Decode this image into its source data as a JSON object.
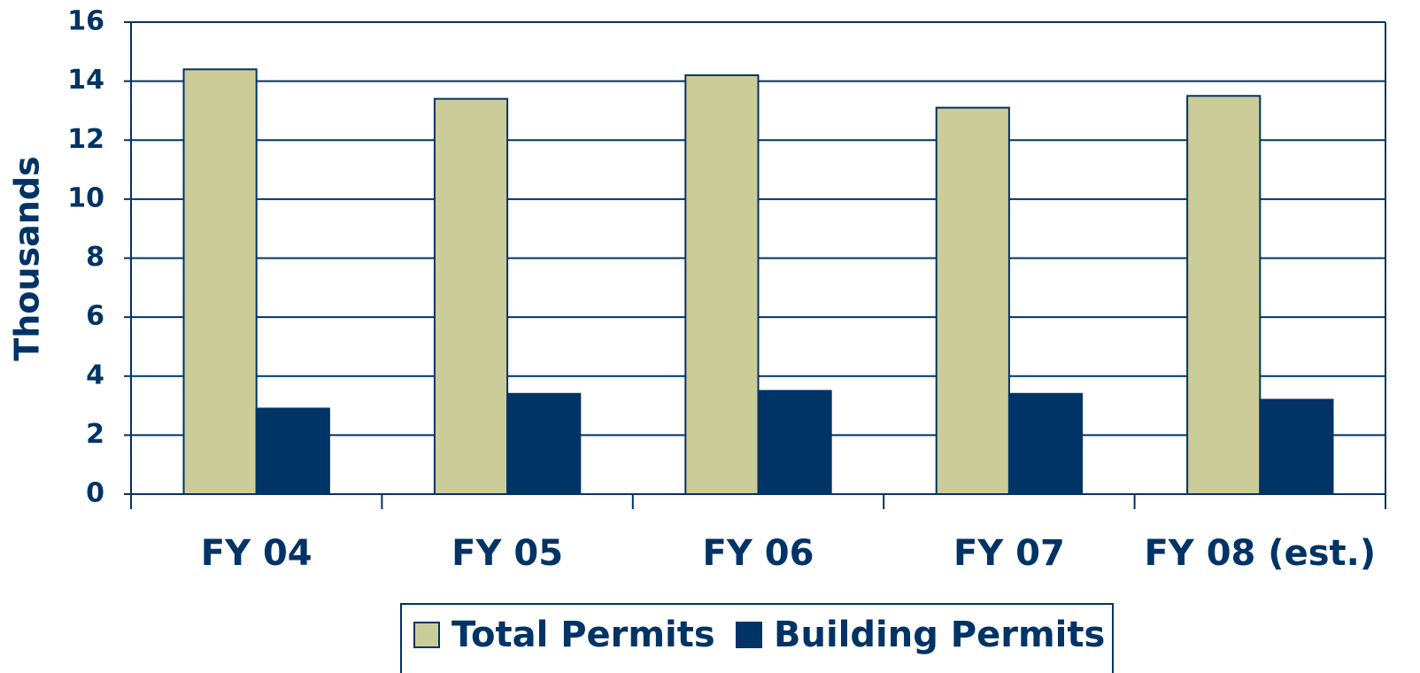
{
  "chart_data": {
    "type": "bar",
    "y_label": "Thousands",
    "categories": [
      "FY 04",
      "FY 05",
      "FY 06",
      "FY 07",
      "FY 08 (est.)"
    ],
    "series": [
      {
        "name": "Total Permits",
        "color": "#cccc99",
        "values": [
          14.4,
          13.4,
          14.2,
          13.1,
          13.5
        ]
      },
      {
        "name": "Building Permits",
        "color": "#003366",
        "values": [
          2.9,
          3.4,
          3.5,
          3.4,
          3.2
        ]
      }
    ],
    "ylim": [
      0,
      16
    ],
    "yticks": [
      0,
      2,
      4,
      6,
      8,
      10,
      12,
      14,
      16
    ],
    "grid": true
  }
}
